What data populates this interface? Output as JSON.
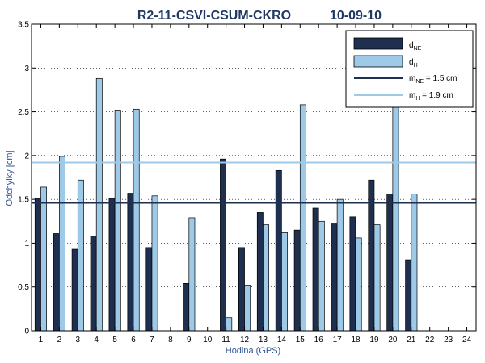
{
  "chart_data": {
    "type": "bar",
    "title": "R2-11-CSVI-CSUM-CKRO",
    "title_date": "10-09-10",
    "xlabel": "Hodina (GPS)",
    "ylabel": "Odchýlky [cm]",
    "categories": [
      "1",
      "2",
      "3",
      "4",
      "5",
      "6",
      "7",
      "8",
      "9",
      "10",
      "11",
      "12",
      "13",
      "14",
      "15",
      "16",
      "17",
      "18",
      "19",
      "20",
      "21",
      "22",
      "23",
      "24"
    ],
    "ylim": [
      0,
      3.5
    ],
    "yticks": [
      "0",
      "0.5",
      "1",
      "1.5",
      "2",
      "2.5",
      "3",
      "3.5"
    ],
    "grid": "dotted horizontal",
    "legend_position": "top-right",
    "series": [
      {
        "name": "d_NE",
        "color": "#1f2f4f",
        "values": [
          1.51,
          1.11,
          0.93,
          1.08,
          1.51,
          1.57,
          0.95,
          null,
          0.54,
          null,
          1.96,
          0.95,
          1.35,
          1.83,
          1.15,
          1.4,
          1.22,
          1.3,
          1.72,
          1.56,
          0.81,
          null,
          null,
          null
        ]
      },
      {
        "name": "d_H",
        "color": "#9ecae8",
        "values": [
          1.64,
          1.99,
          1.72,
          2.88,
          2.52,
          2.53,
          1.54,
          null,
          1.29,
          null,
          0.15,
          0.52,
          1.21,
          1.12,
          2.58,
          1.25,
          1.5,
          1.06,
          1.21,
          2.65,
          1.56,
          null,
          null,
          null
        ]
      }
    ],
    "reference_lines": [
      {
        "name": "m_NE",
        "value": 1.46,
        "label_value": "1.5 cm",
        "color": "#1f2f4f"
      },
      {
        "name": "m_H",
        "value": 1.92,
        "label_value": "1.9 cm",
        "color": "#9ecae8"
      }
    ]
  },
  "legend": {
    "d_ne": {
      "main": "d",
      "sub": "NE"
    },
    "d_h": {
      "main": "d",
      "sub": "H"
    },
    "m_ne": {
      "main": "m",
      "sub": "NE",
      "rest": " = 1.5 cm"
    },
    "m_h": {
      "main": "m",
      "sub": "H",
      "rest": " = 1.9 cm"
    }
  }
}
